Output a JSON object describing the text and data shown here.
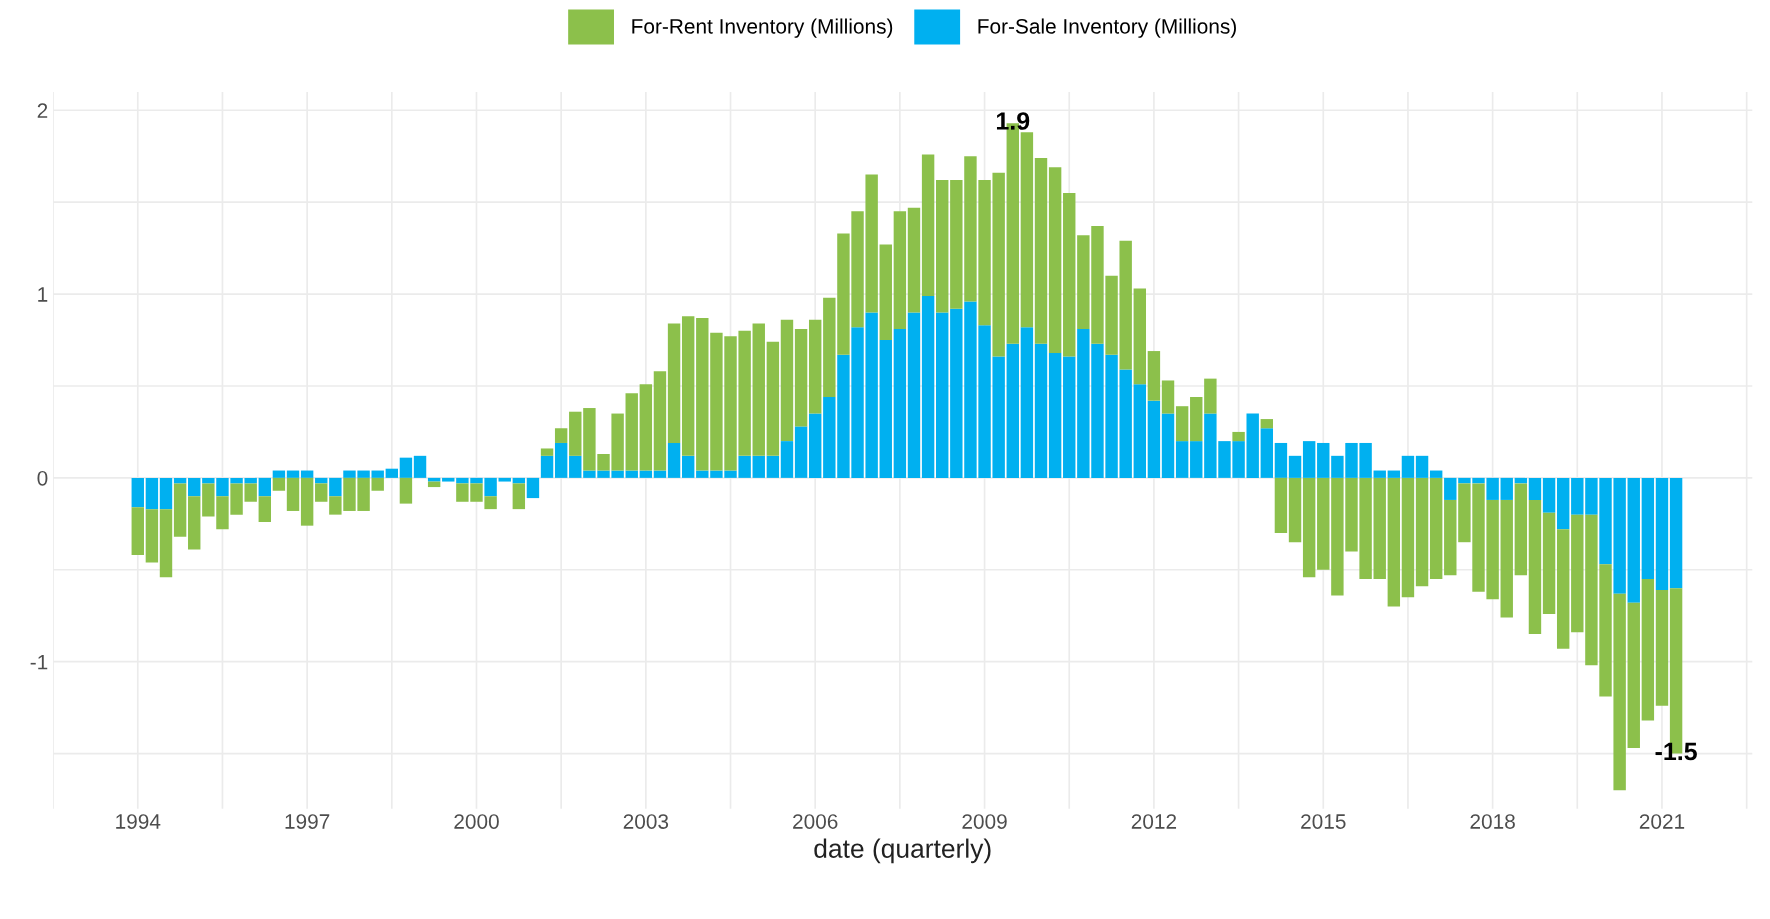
{
  "chart_data": {
    "type": "bar",
    "stacked": true,
    "xlabel": "date (quarterly)",
    "legend": "top",
    "grid": true,
    "x": [
      1994,
      1994.25,
      1994.5,
      1994.75,
      1995,
      1995.25,
      1995.5,
      1995.75,
      1996,
      1996.25,
      1996.5,
      1996.75,
      1997,
      1997.25,
      1997.5,
      1997.75,
      1998,
      1998.25,
      1998.5,
      1998.75,
      1999,
      1999.25,
      1999.5,
      1999.75,
      2000,
      2000.25,
      2000.5,
      2000.75,
      2001,
      2001.25,
      2001.5,
      2001.75,
      2002,
      2002.25,
      2002.5,
      2002.75,
      2003,
      2003.25,
      2003.5,
      2003.75,
      2004,
      2004.25,
      2004.5,
      2004.75,
      2005,
      2005.25,
      2005.5,
      2005.75,
      2006,
      2006.25,
      2006.5,
      2006.75,
      2007,
      2007.25,
      2007.5,
      2007.75,
      2008,
      2008.25,
      2008.5,
      2008.75,
      2009,
      2009.25,
      2009.5,
      2009.75,
      2010,
      2010.25,
      2010.5,
      2010.75,
      2011,
      2011.25,
      2011.5,
      2011.75,
      2012,
      2012.25,
      2012.5,
      2012.75,
      2013,
      2013.25,
      2013.5,
      2013.75,
      2014,
      2014.25,
      2014.5,
      2014.75,
      2015,
      2015.25,
      2015.5,
      2015.75,
      2016,
      2016.25,
      2016.5,
      2016.75,
      2017,
      2017.25,
      2017.5,
      2017.75,
      2018,
      2018.25,
      2018.5,
      2018.75,
      2019,
      2019.25,
      2019.5,
      2019.75,
      2020,
      2020.25,
      2020.5,
      2020.75,
      2021,
      2021.25
    ],
    "series": [
      {
        "name": "For-Sale Inventory (Millions)",
        "color": "#00b0f0",
        "values": [
          -0.16,
          -0.17,
          -0.17,
          -0.03,
          -0.1,
          -0.03,
          -0.1,
          -0.03,
          -0.03,
          -0.1,
          0.04,
          0.04,
          0.04,
          -0.03,
          -0.1,
          0.04,
          0.04,
          0.04,
          0.05,
          0.11,
          0.12,
          -0.02,
          -0.02,
          -0.03,
          -0.03,
          -0.1,
          -0.02,
          -0.03,
          -0.11,
          0.12,
          0.19,
          0.12,
          0.04,
          0.04,
          0.04,
          0.04,
          0.04,
          0.04,
          0.19,
          0.12,
          0.04,
          0.04,
          0.04,
          0.12,
          0.12,
          0.12,
          0.2,
          0.28,
          0.35,
          0.44,
          0.67,
          0.82,
          0.9,
          0.75,
          0.81,
          0.9,
          0.99,
          0.9,
          0.92,
          0.96,
          0.83,
          0.66,
          0.73,
          0.82,
          0.73,
          0.68,
          0.66,
          0.81,
          0.73,
          0.67,
          0.59,
          0.51,
          0.42,
          0.35,
          0.2,
          0.2,
          0.35,
          0.2,
          0.2,
          0.35,
          0.27,
          0.19,
          0.12,
          0.2,
          0.19,
          0.12,
          0.19,
          0.19,
          0.04,
          0.04,
          0.12,
          0.12,
          0.04,
          -0.12,
          -0.03,
          -0.03,
          -0.12,
          -0.12,
          -0.03,
          -0.12,
          -0.19,
          -0.28,
          -0.2,
          -0.2,
          -0.47,
          -0.63,
          -0.68,
          -0.55,
          -0.61,
          -0.6
        ]
      },
      {
        "name": "For-Rent Inventory (Millions)",
        "color": "#8cc04b",
        "values": [
          -0.26,
          -0.29,
          -0.37,
          -0.29,
          -0.29,
          -0.18,
          -0.18,
          -0.17,
          -0.1,
          -0.14,
          -0.07,
          -0.18,
          -0.26,
          -0.1,
          -0.1,
          -0.18,
          -0.18,
          -0.07,
          0,
          -0.14,
          0,
          -0.03,
          0,
          -0.1,
          -0.1,
          -0.07,
          0,
          -0.14,
          0,
          0.04,
          0.08,
          0.24,
          0.34,
          0.09,
          0.31,
          0.42,
          0.47,
          0.54,
          0.65,
          0.76,
          0.83,
          0.75,
          0.73,
          0.68,
          0.72,
          0.62,
          0.66,
          0.53,
          0.51,
          0.54,
          0.66,
          0.63,
          0.75,
          0.52,
          0.64,
          0.57,
          0.77,
          0.72,
          0.7,
          0.79,
          0.79,
          1.0,
          1.2,
          1.06,
          1.01,
          1.01,
          0.89,
          0.51,
          0.64,
          0.43,
          0.7,
          0.52,
          0.27,
          0.18,
          0.19,
          0.24,
          0.19,
          0,
          0.05,
          0,
          0.05,
          -0.3,
          -0.35,
          -0.54,
          -0.5,
          -0.64,
          -0.4,
          -0.55,
          -0.55,
          -0.7,
          -0.65,
          -0.59,
          -0.55,
          -0.41,
          -0.32,
          -0.59,
          -0.54,
          -0.64,
          -0.5,
          -0.73,
          -0.55,
          -0.65,
          -0.64,
          -0.82,
          -0.72,
          -1.07,
          -0.79,
          -0.77,
          -0.63,
          -0.9
        ]
      }
    ],
    "xlim": [
      1992.5,
      2022.6
    ],
    "xticks": [
      {
        "value": 1992.5,
        "label": null
      },
      1994,
      {
        "value": 1995.5,
        "label": null
      },
      1997,
      {
        "value": 1998.5,
        "label": null
      },
      2000,
      {
        "value": 2001.5,
        "label": null
      },
      2003,
      {
        "value": 2004.5,
        "label": null
      },
      2006,
      {
        "value": 2007.5,
        "label": null
      },
      2009,
      {
        "value": 2010.5,
        "label": null
      },
      2012,
      {
        "value": 2013.5,
        "label": null
      },
      2015,
      {
        "value": 2016.5,
        "label": null
      },
      2018,
      {
        "value": 2019.5,
        "label": null
      },
      2021,
      {
        "value": 2022.5,
        "label": null
      }
    ],
    "ylim": [
      -1.8,
      2.1
    ],
    "yticks": [
      {
        "value": -1.5,
        "label": null
      },
      -1,
      {
        "value": -0.5,
        "label": null
      },
      0,
      {
        "value": 0.5,
        "label": null
      },
      1,
      {
        "value": 1.5,
        "label": null
      },
      2
    ],
    "annotations": [
      {
        "text": "1.9",
        "x": 2009.5,
        "y": 1.93
      },
      {
        "text": "-1.5",
        "x": 2021.25,
        "y": -1.5
      }
    ]
  }
}
